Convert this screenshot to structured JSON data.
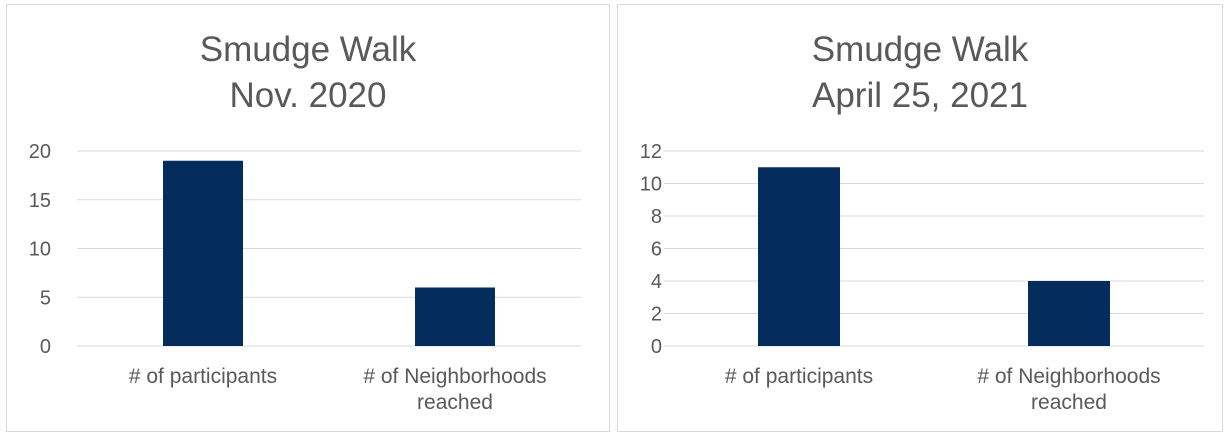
{
  "chart_data": [
    {
      "type": "bar",
      "title": [
        "Smudge Walk",
        "Nov. 2020"
      ],
      "categories": [
        [
          "# of participants"
        ],
        [
          "# of Neighborhoods",
          "reached"
        ]
      ],
      "values": [
        19,
        6
      ],
      "ylim": [
        0,
        20
      ],
      "yticks": [
        "0",
        "5",
        "10",
        "15",
        "20"
      ],
      "xlabel": "",
      "ylabel": "",
      "grid": true,
      "legend": "none",
      "bar_color": "#042D5E",
      "grid_color": "#D9D9D9",
      "text_color": "#595959"
    },
    {
      "type": "bar",
      "title": [
        "Smudge Walk",
        "April 25, 2021"
      ],
      "categories": [
        [
          "# of participants"
        ],
        [
          "# of Neighborhoods",
          "reached"
        ]
      ],
      "values": [
        11,
        4
      ],
      "ylim": [
        0,
        12
      ],
      "yticks": [
        "0",
        "2",
        "4",
        "6",
        "8",
        "10",
        "12"
      ],
      "xlabel": "",
      "ylabel": "",
      "grid": true,
      "legend": "none",
      "bar_color": "#042D5E",
      "grid_color": "#D9D9D9",
      "text_color": "#595959"
    }
  ]
}
